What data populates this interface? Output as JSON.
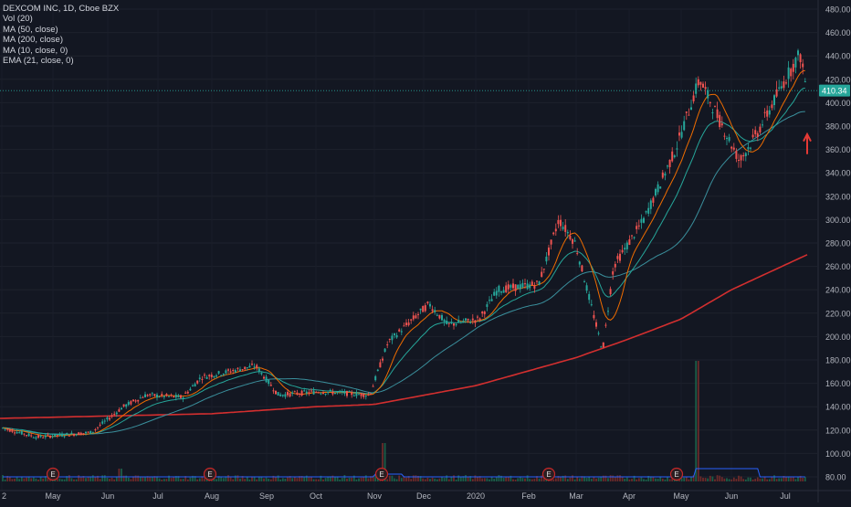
{
  "chart_data": {
    "type": "candlestick",
    "title": "DEXCOM INC, 1D, Cboe BZX",
    "indicators": [
      {
        "label": "Vol (20)"
      },
      {
        "label": "MA (50, close)",
        "color": "#26a69a"
      },
      {
        "label": "MA (200, close)",
        "color": "#d32f2f"
      },
      {
        "label": "MA (10, close, 0)",
        "color": "#ef6c00"
      },
      {
        "label": "EMA (21, close, 0)",
        "color": "#26a69a"
      }
    ],
    "ylim": [
      80,
      480
    ],
    "y_ticks": [
      "480.00",
      "460.00",
      "440.00",
      "420.00",
      "400.00",
      "380.00",
      "360.00",
      "340.00",
      "320.00",
      "300.00",
      "280.00",
      "260.00",
      "240.00",
      "220.00",
      "200.00",
      "180.00",
      "160.00",
      "140.00",
      "120.00",
      "100.00",
      "80.00"
    ],
    "x_labels": [
      "2",
      "May",
      "Jun",
      "Jul",
      "Aug",
      "Sep",
      "Oct",
      "Nov",
      "Dec",
      "2020",
      "Feb",
      "Mar",
      "Apr",
      "May",
      "Jun",
      "Jul"
    ],
    "last_price": "410.34",
    "earnings_marker": "E",
    "earnings_count": 5,
    "price_path": [
      {
        "label": "2",
        "v": 122
      },
      {
        "label": "May",
        "v": 114
      },
      {
        "label": "Jun",
        "v": 118
      },
      {
        "label": "Jun",
        "v": 140
      },
      {
        "label": "Jul",
        "v": 150
      },
      {
        "label": "Aug",
        "v": 148
      },
      {
        "label": "Aug",
        "v": 165
      },
      {
        "label": "Sep",
        "v": 175
      },
      {
        "label": "Sep",
        "v": 150
      },
      {
        "label": "Oct",
        "v": 153
      },
      {
        "label": "Nov",
        "v": 150
      },
      {
        "label": "Nov",
        "v": 195
      },
      {
        "label": "Dec",
        "v": 228
      },
      {
        "label": "Dec",
        "v": 210
      },
      {
        "label": "2020",
        "v": 215
      },
      {
        "label": "2020",
        "v": 240
      },
      {
        "label": "Feb",
        "v": 245
      },
      {
        "label": "Feb",
        "v": 300
      },
      {
        "label": "Mar",
        "v": 280
      },
      {
        "label": "Mar",
        "v": 188
      },
      {
        "label": "Apr",
        "v": 260
      },
      {
        "label": "Apr",
        "v": 300
      },
      {
        "label": "May",
        "v": 360
      },
      {
        "label": "May",
        "v": 420
      },
      {
        "label": "Jun",
        "v": 350
      },
      {
        "label": "Jun",
        "v": 375
      },
      {
        "label": "Jul",
        "v": 420
      },
      {
        "label": "Jul",
        "v": 442
      },
      {
        "label": "Jul",
        "v": 410
      }
    ],
    "ma200_path": [
      {
        "label": "2",
        "v": 130
      },
      {
        "label": "Aug",
        "v": 134
      },
      {
        "label": "Oct",
        "v": 140
      },
      {
        "label": "Nov",
        "v": 142
      },
      {
        "label": "Jan",
        "v": 158
      },
      {
        "label": "Mar",
        "v": 182
      },
      {
        "label": "Apr",
        "v": 198
      },
      {
        "label": "May",
        "v": 215
      },
      {
        "label": "Jun",
        "v": 240
      },
      {
        "label": "Jul",
        "v": 270
      }
    ]
  }
}
